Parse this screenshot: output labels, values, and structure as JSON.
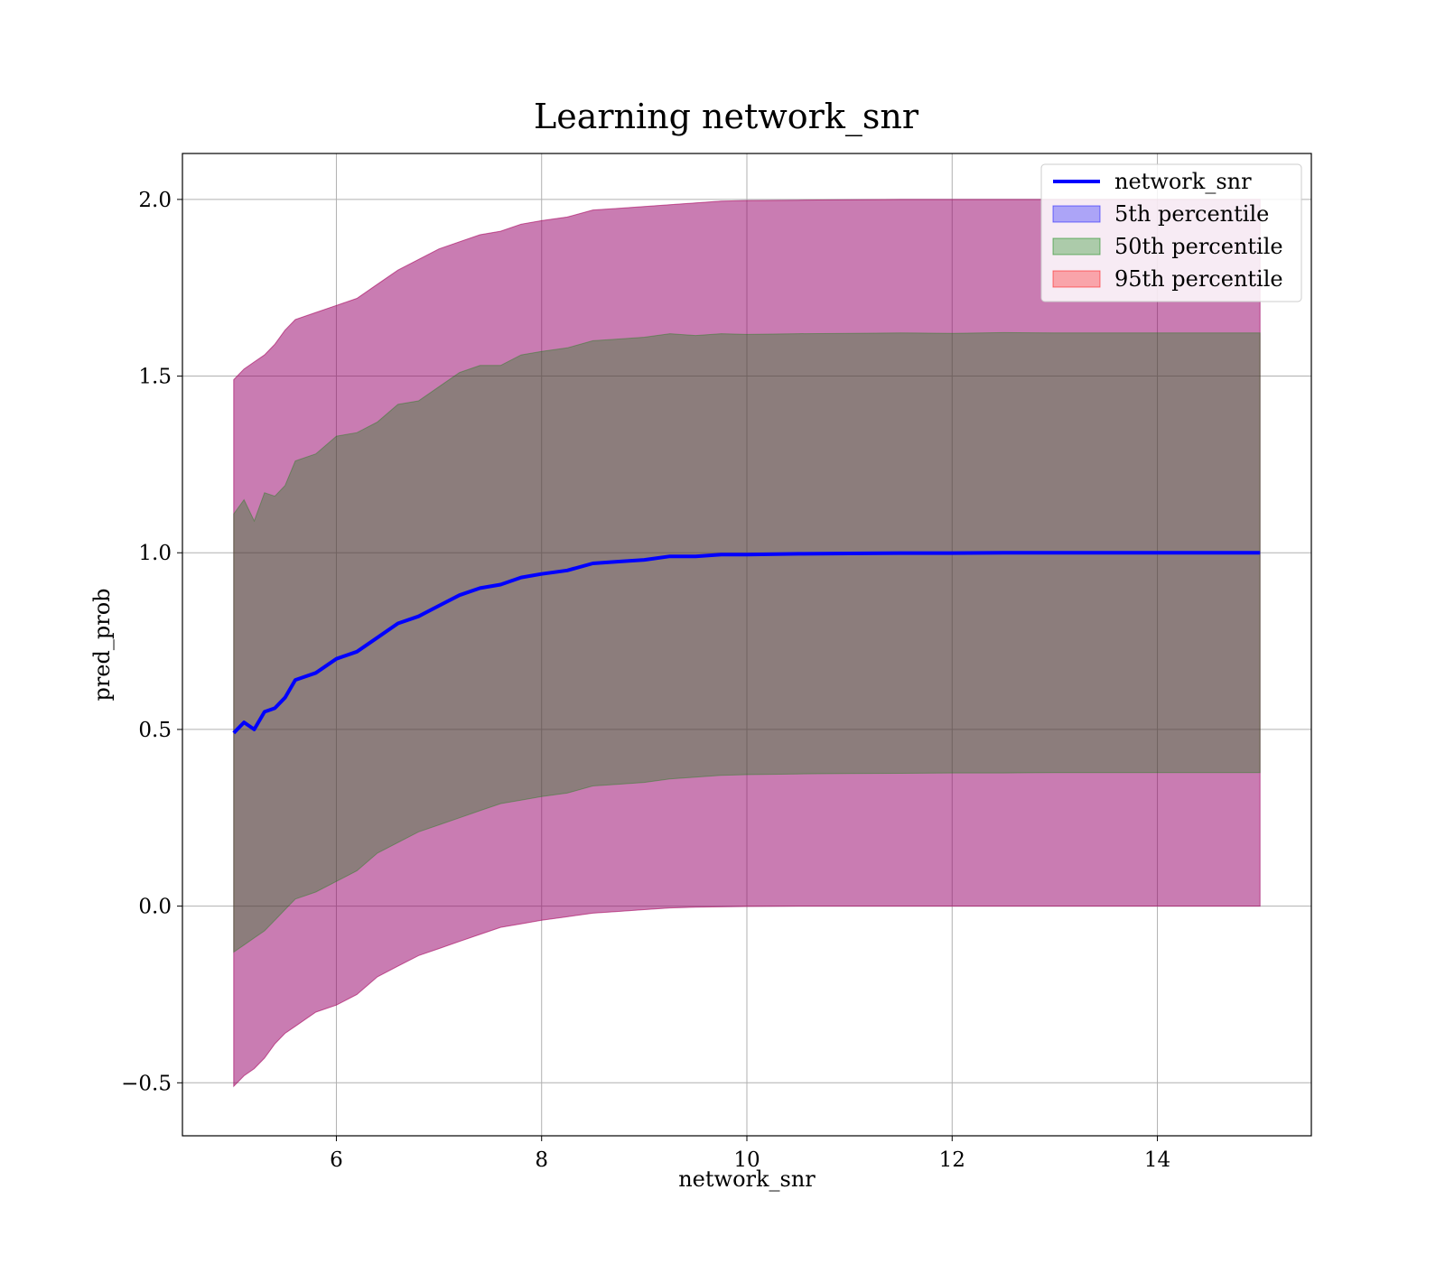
{
  "chart_data": {
    "type": "area",
    "title": "Learning network_snr",
    "xlabel": "network_snr",
    "ylabel": "pred_prob",
    "xlim": [
      4.5,
      15.5
    ],
    "ylim": [
      -0.65,
      2.13
    ],
    "x_ticks": [
      6,
      8,
      10,
      12,
      14
    ],
    "x_tick_labels": [
      "6",
      "8",
      "10",
      "12",
      "14"
    ],
    "y_ticks": [
      -0.5,
      0.0,
      0.5,
      1.0,
      1.5,
      2.0
    ],
    "y_tick_labels": [
      "−0.5",
      "0.0",
      "0.5",
      "1.0",
      "1.5",
      "2.0"
    ],
    "grid": true,
    "legend_position": "top-right",
    "legend": [
      {
        "label": "network_snr",
        "kind": "line",
        "color": "#0000ff"
      },
      {
        "label": "5th percentile",
        "kind": "patch",
        "color": "#0000ff",
        "opacity": 0.3
      },
      {
        "label": "50th percentile",
        "kind": "patch",
        "color": "#008000",
        "opacity": 0.3
      },
      {
        "label": "95th percentile",
        "kind": "patch",
        "color": "#ff0000",
        "opacity": 0.3
      }
    ],
    "x": [
      5.0,
      5.1,
      5.2,
      5.3,
      5.4,
      5.5,
      5.6,
      5.8,
      6.0,
      6.2,
      6.4,
      6.6,
      6.8,
      7.0,
      7.2,
      7.4,
      7.6,
      7.8,
      8.0,
      8.25,
      8.5,
      8.75,
      9.0,
      9.25,
      9.5,
      9.75,
      10.0,
      10.5,
      11.0,
      11.5,
      12.0,
      12.5,
      13.0,
      13.5,
      14.0,
      14.5,
      15.0
    ],
    "series": [
      {
        "name": "network_snr",
        "kind": "line",
        "color": "#0000ff",
        "values": [
          0.49,
          0.52,
          0.5,
          0.55,
          0.56,
          0.59,
          0.64,
          0.66,
          0.7,
          0.72,
          0.76,
          0.8,
          0.82,
          0.85,
          0.88,
          0.9,
          0.91,
          0.93,
          0.94,
          0.95,
          0.97,
          0.975,
          0.98,
          0.99,
          0.99,
          0.995,
          0.995,
          0.997,
          0.998,
          0.999,
          0.999,
          1.0,
          1.0,
          1.0,
          1.0,
          1.0,
          1.0
        ]
      },
      {
        "name": "5th percentile",
        "kind": "band",
        "color": "#0000ff",
        "opacity": 0.3,
        "lower": [
          -0.51,
          -0.48,
          -0.46,
          -0.43,
          -0.39,
          -0.36,
          -0.34,
          -0.3,
          -0.28,
          -0.25,
          -0.2,
          -0.17,
          -0.14,
          -0.12,
          -0.1,
          -0.08,
          -0.06,
          -0.05,
          -0.04,
          -0.03,
          -0.02,
          -0.015,
          -0.01,
          -0.005,
          -0.003,
          -0.002,
          -0.001,
          0.0,
          0.0,
          0.0,
          0.0,
          0.0,
          0.0,
          0.0,
          0.0,
          0.0,
          0.0
        ],
        "upper": [
          1.49,
          1.52,
          1.54,
          1.56,
          1.59,
          1.63,
          1.66,
          1.68,
          1.7,
          1.72,
          1.76,
          1.8,
          1.83,
          1.86,
          1.88,
          1.9,
          1.91,
          1.93,
          1.94,
          1.95,
          1.97,
          1.975,
          1.98,
          1.985,
          1.99,
          1.995,
          1.997,
          1.998,
          1.999,
          2.0,
          2.0,
          2.0,
          2.0,
          2.0,
          2.0,
          2.0,
          2.0
        ]
      },
      {
        "name": "50th percentile",
        "kind": "band",
        "color": "#008000",
        "opacity": 0.3,
        "lower": [
          -0.13,
          -0.11,
          -0.09,
          -0.07,
          -0.04,
          -0.01,
          0.02,
          0.04,
          0.07,
          0.1,
          0.15,
          0.18,
          0.21,
          0.23,
          0.25,
          0.27,
          0.29,
          0.3,
          0.31,
          0.32,
          0.34,
          0.345,
          0.35,
          0.36,
          0.365,
          0.37,
          0.372,
          0.374,
          0.375,
          0.376,
          0.377,
          0.377,
          0.378,
          0.378,
          0.378,
          0.378,
          0.378
        ]
      },
      {
        "name": "95th percentile",
        "kind": "band",
        "color": "#ff0000",
        "opacity": 0.3,
        "lower": [
          -0.51,
          -0.48,
          -0.46,
          -0.43,
          -0.39,
          -0.36,
          -0.34,
          -0.3,
          -0.28,
          -0.25,
          -0.2,
          -0.17,
          -0.14,
          -0.12,
          -0.1,
          -0.08,
          -0.06,
          -0.05,
          -0.04,
          -0.03,
          -0.02,
          -0.015,
          -0.01,
          -0.005,
          -0.003,
          -0.002,
          -0.001,
          0.0,
          0.0,
          0.0,
          0.0,
          0.0,
          0.0,
          0.0,
          0.0,
          0.0,
          0.0
        ],
        "upper": [
          1.49,
          1.52,
          1.54,
          1.56,
          1.59,
          1.63,
          1.66,
          1.68,
          1.7,
          1.72,
          1.76,
          1.8,
          1.83,
          1.86,
          1.88,
          1.9,
          1.91,
          1.93,
          1.94,
          1.95,
          1.97,
          1.975,
          1.98,
          1.985,
          1.99,
          1.995,
          1.997,
          1.998,
          1.999,
          2.0,
          2.0,
          2.0,
          2.0,
          2.0,
          2.0,
          2.0,
          2.0
        ]
      }
    ]
  }
}
